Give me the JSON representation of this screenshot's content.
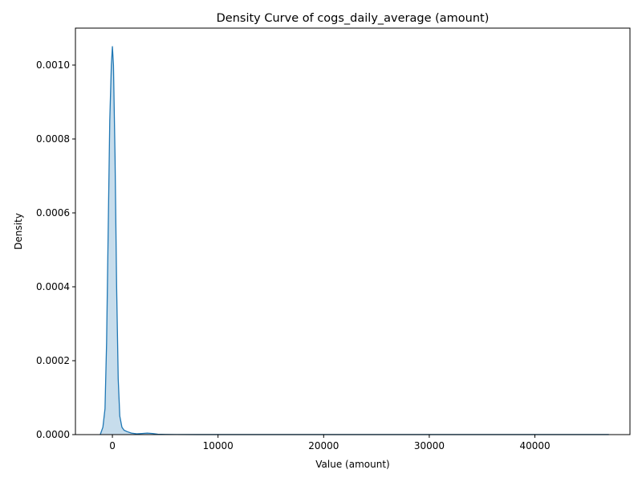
{
  "chart_data": {
    "type": "area",
    "title": "Density Curve of cogs_daily_average (amount)",
    "xlabel": "Value (amount)",
    "ylabel": "Density",
    "xlim": [
      -3500,
      49000
    ],
    "ylim": [
      0,
      0.0011
    ],
    "grid": false,
    "legend": "none",
    "x_ticks": [
      {
        "value": 0,
        "label": "0"
      },
      {
        "value": 10000,
        "label": "10000"
      },
      {
        "value": 20000,
        "label": "20000"
      },
      {
        "value": 30000,
        "label": "30000"
      },
      {
        "value": 40000,
        "label": "40000"
      }
    ],
    "y_ticks": [
      {
        "value": 0,
        "label": "0.0000"
      },
      {
        "value": 0.0002,
        "label": "0.0002"
      },
      {
        "value": 0.0004,
        "label": "0.0004"
      },
      {
        "value": 0.0006,
        "label": "0.0006"
      },
      {
        "value": 0.0008,
        "label": "0.0008"
      },
      {
        "value": 0.001,
        "label": "0.0010"
      }
    ],
    "series": [
      {
        "color": "#1f77b4",
        "fill_color": "#1f77b4",
        "fill_opacity": 0.25,
        "x": [
          -1150,
          -900,
          -700,
          -550,
          -400,
          -250,
          -100,
          0,
          100,
          250,
          400,
          550,
          700,
          900,
          1100,
          1400,
          1800,
          2300,
          2800,
          3300,
          3800,
          4300,
          5000,
          6000,
          8000,
          10000,
          15000,
          20000,
          25000,
          30000,
          35000,
          40000,
          45000,
          47000
        ],
        "y": [
          0.0,
          2e-05,
          7e-05,
          0.00025,
          0.00055,
          0.00085,
          0.001,
          0.00105,
          0.001,
          0.00075,
          0.0004,
          0.00015,
          5e-05,
          2e-05,
          1.2e-05,
          8e-06,
          4e-06,
          2e-06,
          3e-06,
          4e-06,
          3e-06,
          1e-06,
          5e-07,
          2e-07,
          1e-07,
          1e-07,
          1e-07,
          1e-07,
          1e-07,
          1e-07,
          1e-07,
          1e-07,
          1e-07,
          1e-07
        ]
      }
    ]
  }
}
